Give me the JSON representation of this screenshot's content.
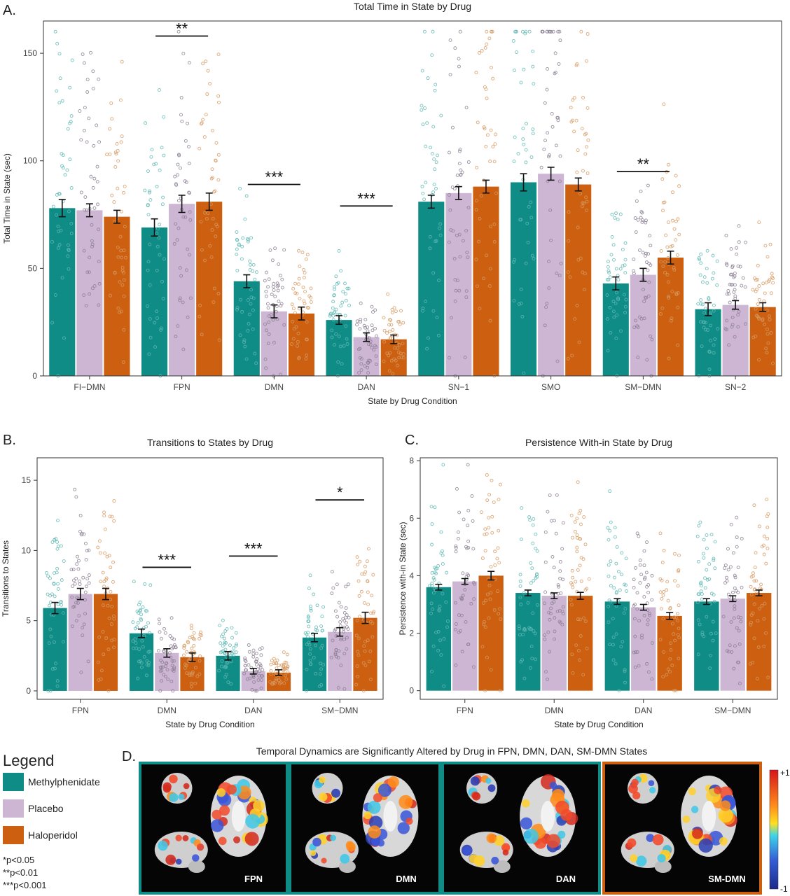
{
  "colors": {
    "methylphenidate": "#108C86",
    "placebo": "#CDB6D4",
    "haloperidol": "#CC6010"
  },
  "panel_letters": {
    "a": "A.",
    "b": "B.",
    "c": "C.",
    "d": "D."
  },
  "chart_data": [
    {
      "id": "A",
      "type": "bar",
      "title": "Total Time in State by Drug",
      "xlabel": "State by Drug Condition",
      "ylabel": "Total Time in State (sec)",
      "ylim": [
        0,
        165
      ],
      "yticks": [
        0,
        50,
        100,
        150
      ],
      "categories": [
        "FI−DMN",
        "FPN",
        "DMN",
        "DAN",
        "SN−1",
        "SMO",
        "SM−DMN",
        "SN−2"
      ],
      "series": [
        {
          "name": "Methylphenidate",
          "values": [
            78,
            69,
            44,
            26,
            81,
            90,
            43,
            31
          ],
          "errors": [
            4,
            4,
            3,
            2,
            3,
            4,
            3,
            3
          ]
        },
        {
          "name": "Placebo",
          "values": [
            77,
            80,
            30,
            18,
            85,
            94,
            47,
            33
          ],
          "errors": [
            3,
            4,
            3,
            2,
            3,
            3,
            3,
            2
          ]
        },
        {
          "name": "Haloperidol",
          "values": [
            74,
            81,
            29,
            17,
            88,
            89,
            55,
            32
          ],
          "errors": [
            3,
            4,
            3,
            2,
            3,
            3,
            3,
            2
          ]
        }
      ],
      "annotations": [
        {
          "category": "FPN",
          "text": "**",
          "y": 158
        },
        {
          "category": "DMN",
          "text": "***",
          "y": 89
        },
        {
          "category": "DAN",
          "text": "***",
          "y": 79
        },
        {
          "category": "SM−DMN",
          "text": "**",
          "y": 95
        }
      ]
    },
    {
      "id": "B",
      "type": "bar",
      "title": "Transitions to States by Drug",
      "xlabel": "State by Drug Condition",
      "ylabel": "Transitions to States",
      "ylim": [
        -0.6,
        16.6
      ],
      "yticks": [
        0,
        5,
        10,
        15
      ],
      "categories": [
        "FPN",
        "DMN",
        "DAN",
        "SM−DMN"
      ],
      "series": [
        {
          "name": "Methylphenidate",
          "values": [
            5.9,
            4.1,
            2.5,
            3.8
          ],
          "errors": [
            0.4,
            0.3,
            0.3,
            0.3
          ]
        },
        {
          "name": "Placebo",
          "values": [
            6.9,
            2.7,
            1.4,
            4.2
          ],
          "errors": [
            0.4,
            0.3,
            0.2,
            0.3
          ]
        },
        {
          "name": "Haloperidol",
          "values": [
            6.9,
            2.4,
            1.3,
            5.2
          ],
          "errors": [
            0.4,
            0.3,
            0.2,
            0.4
          ]
        }
      ],
      "annotations": [
        {
          "category": "DMN",
          "text": "***",
          "y": 8.8
        },
        {
          "category": "DAN",
          "text": "***",
          "y": 9.6
        },
        {
          "category": "SM−DMN",
          "text": "*",
          "y": 13.6
        }
      ]
    },
    {
      "id": "C",
      "type": "bar",
      "title": "Persistence With-in State by Drug",
      "xlabel": "State by Drug Condition",
      "ylabel": "Persistence with-in State (sec)",
      "ylim": [
        -0.3,
        8.1
      ],
      "yticks": [
        0,
        2,
        4,
        6,
        8
      ],
      "categories": [
        "FPN",
        "DMN",
        "DAN",
        "SM−DMN"
      ],
      "series": [
        {
          "name": "Methylphenidate",
          "values": [
            3.6,
            3.4,
            3.1,
            3.1
          ],
          "errors": [
            0.1,
            0.1,
            0.1,
            0.1
          ]
        },
        {
          "name": "Placebo",
          "values": [
            3.8,
            3.3,
            2.9,
            3.2
          ],
          "errors": [
            0.1,
            0.1,
            0.1,
            0.1
          ]
        },
        {
          "name": "Haloperidol",
          "values": [
            4.0,
            3.3,
            2.6,
            3.4
          ],
          "errors": [
            0.15,
            0.12,
            0.12,
            0.1
          ]
        }
      ],
      "annotations": []
    }
  ],
  "legend": {
    "title": "Legend",
    "items": [
      {
        "label": "Methylphenidate",
        "color": "#108C86"
      },
      {
        "label": "Placebo",
        "color": "#CDB6D4"
      },
      {
        "label": "Haloperidol",
        "color": "#CC6010"
      }
    ],
    "significance": [
      "*p<0.05",
      "**p<0.01",
      "***p<0.001"
    ]
  },
  "brain_panel": {
    "title": "Temporal Dynamics are Significantly Altered by Drug in FPN, DMN, DAN, SM-DMN States",
    "tiles": [
      {
        "label": "FPN",
        "border": "#108C86"
      },
      {
        "label": "DMN",
        "border": "#108C86"
      },
      {
        "label": "DAN",
        "border": "#108C86"
      },
      {
        "label": "SM-DMN",
        "border": "#CC6010"
      }
    ],
    "colorbar": {
      "max": "+1",
      "min": "-1"
    }
  }
}
